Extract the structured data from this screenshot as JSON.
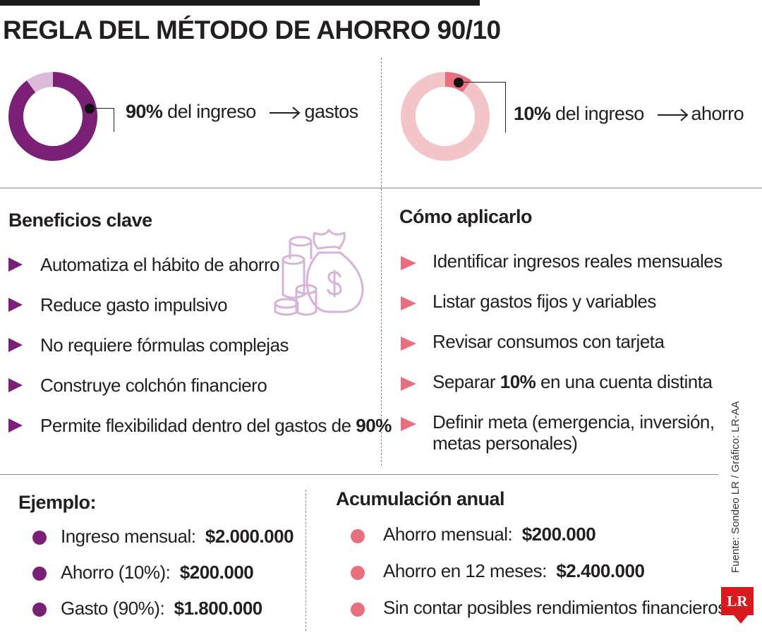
{
  "title": "REGLA DEL MÉTODO DE AHORRO 90/10",
  "chart_data": [
    {
      "type": "pie",
      "categories": [
        "gastos",
        ""
      ],
      "values": [
        90,
        10
      ],
      "colors": [
        "#7b2076",
        "#ddbadb"
      ],
      "label": {
        "value": "90%",
        "text": " del ingreso",
        "target": "gastos"
      }
    },
    {
      "type": "pie",
      "categories": [
        "ahorro",
        ""
      ],
      "values": [
        10,
        90
      ],
      "colors": [
        "#e8707e",
        "#f3c5c9"
      ],
      "label": {
        "value": "10%",
        "text": " del ingreso",
        "target": "ahorro"
      }
    }
  ],
  "beneficios": {
    "title": "Beneficios clave",
    "items": [
      {
        "text": "Automatiza el hábito de ahorro"
      },
      {
        "text": "Reduce gasto impulsivo"
      },
      {
        "text": "No requiere fórmulas complejas"
      },
      {
        "text": "Construye colchón financiero"
      },
      {
        "text": "Permite flexibilidad dentro del gastos de ",
        "bold": "90%"
      }
    ],
    "icon": "money-bag-and-coins-icon"
  },
  "como": {
    "title": "Cómo aplicarlo",
    "items": [
      {
        "text": "Identificar ingresos reales mensuales"
      },
      {
        "text": "Listar gastos fijos y variables"
      },
      {
        "text": "Revisar consumos con tarjeta"
      },
      {
        "text": "Separar ",
        "bold": "10%",
        "after": " en una cuenta distinta"
      },
      {
        "text": "Definir meta (emergencia, inversión,",
        "line2": "metas personales)"
      }
    ]
  },
  "ejemplo": {
    "title": "Ejemplo:",
    "items": [
      {
        "label": "Ingreso mensual:",
        "value": "$2.000.000"
      },
      {
        "label": "Ahorro (10%):",
        "value": "$200.000"
      },
      {
        "label": "Gasto (90%):",
        "value": "$1.800.000"
      }
    ]
  },
  "acumulacion": {
    "title": "Acumulación anual",
    "items": [
      {
        "label": "Ahorro mensual:",
        "value": "$200.000"
      },
      {
        "label": "Ahorro en 12 meses:",
        "value": "$2.400.000"
      },
      {
        "label": "Sin contar posibles rendimientos financieros",
        "value": ""
      }
    ]
  },
  "colors": {
    "purple": "#7b2076",
    "purple_light": "#ddbadb",
    "pink": "#e8707e",
    "pink_light": "#f3c5c9",
    "icon_lilac": "#d6b3d9",
    "logo_red": "#d71920"
  },
  "source": "Fuente: Sondeo LR / Gráfico: LR-AA",
  "logo": "LR"
}
